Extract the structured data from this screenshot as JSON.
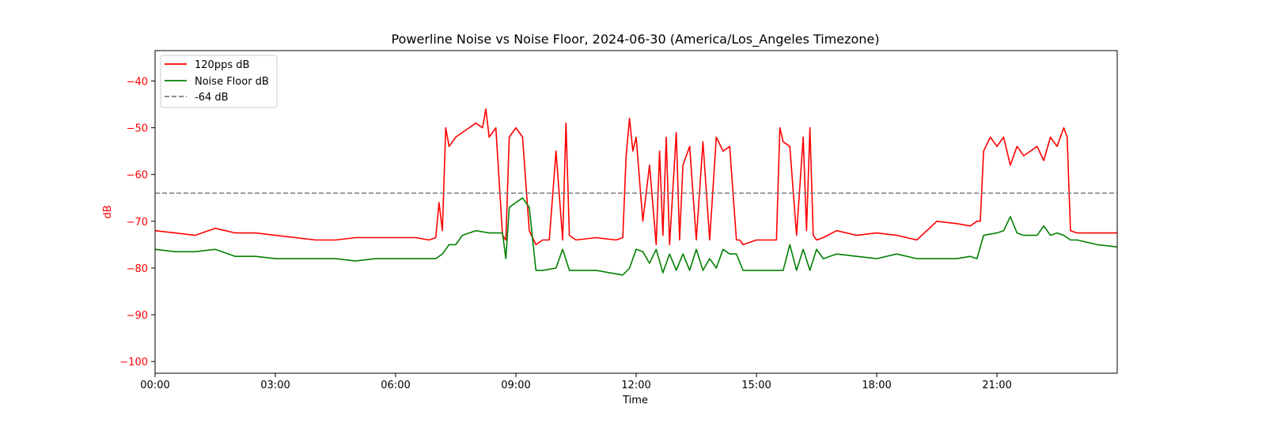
{
  "chart_data": {
    "type": "line",
    "title": "Powerline Noise vs Noise Floor, 2024-06-30 (America/Los_Angeles Timezone)",
    "xlabel": "Time",
    "ylabel": "dB",
    "xlim": [
      "00:00",
      "24:00"
    ],
    "ylim": [
      -102.5,
      -33.5
    ],
    "x_ticks": [
      "00:00",
      "03:00",
      "06:00",
      "09:00",
      "12:00",
      "15:00",
      "18:00",
      "21:00"
    ],
    "y_ticks": [
      -40,
      -50,
      -60,
      -70,
      -80,
      -90,
      -100
    ],
    "y_tick_labels": [
      "−40",
      "−50",
      "−60",
      "−70",
      "−80",
      "−90",
      "−100"
    ],
    "legend_position": "top-left",
    "grid": false,
    "colors": {
      "pps": "#ff0000",
      "floor": "#008000",
      "threshold": "#7f7f7f",
      "ylabel": "#ff0000",
      "yticks": "#ff0000"
    },
    "series": [
      {
        "name": "120pps dB",
        "style": "solid",
        "x": [
          "00:00",
          "00:30",
          "01:00",
          "01:30",
          "02:00",
          "02:30",
          "03:00",
          "03:30",
          "04:00",
          "04:30",
          "05:00",
          "05:30",
          "06:00",
          "06:30",
          "06:50",
          "07:00",
          "07:05",
          "07:10",
          "07:15",
          "07:20",
          "07:30",
          "07:40",
          "07:50",
          "08:00",
          "08:10",
          "08:15",
          "08:20",
          "08:30",
          "08:40",
          "08:45",
          "08:50",
          "09:00",
          "09:10",
          "09:20",
          "09:30",
          "09:40",
          "09:50",
          "10:00",
          "10:10",
          "10:15",
          "10:20",
          "10:30",
          "11:00",
          "11:30",
          "11:40",
          "11:45",
          "11:50",
          "11:55",
          "12:00",
          "12:10",
          "12:20",
          "12:30",
          "12:35",
          "12:40",
          "12:45",
          "12:50",
          "13:00",
          "13:05",
          "13:10",
          "13:20",
          "13:30",
          "13:40",
          "13:50",
          "14:00",
          "14:10",
          "14:20",
          "14:30",
          "14:35",
          "14:40",
          "15:00",
          "15:30",
          "15:35",
          "15:40",
          "15:50",
          "16:00",
          "16:10",
          "16:15",
          "16:20",
          "16:25",
          "16:30",
          "16:40",
          "17:00",
          "17:30",
          "18:00",
          "18:30",
          "19:00",
          "19:30",
          "20:00",
          "20:20",
          "20:30",
          "20:35",
          "20:40",
          "20:50",
          "21:00",
          "21:10",
          "21:20",
          "21:30",
          "21:40",
          "21:50",
          "22:00",
          "22:10",
          "22:20",
          "22:30",
          "22:40",
          "22:45",
          "22:50",
          "23:00",
          "23:30",
          "24:00"
        ],
        "values": [
          -72,
          -72.5,
          -73,
          -71.5,
          -72.5,
          -72.5,
          -73,
          -73.5,
          -74,
          -74,
          -73.5,
          -73.5,
          -73.5,
          -73.5,
          -74,
          -73.5,
          -66,
          -72,
          -50,
          -54,
          -52,
          -51,
          -50,
          -49,
          -50,
          -46,
          -52,
          -50,
          -73,
          -74,
          -52,
          -50,
          -52,
          -72,
          -75,
          -74,
          -74,
          -55,
          -74,
          -49,
          -73,
          -74,
          -73.5,
          -74,
          -73.5,
          -56,
          -48,
          -55,
          -52,
          -70,
          -58,
          -75,
          -55,
          -73,
          -52,
          -75,
          -51,
          -74,
          -58,
          -54,
          -74,
          -53,
          -74,
          -52,
          -55,
          -54,
          -74,
          -74,
          -75,
          -74,
          -74,
          -50,
          -53,
          -54,
          -73,
          -52,
          -72,
          -50,
          -73,
          -74,
          -73.5,
          -72,
          -73,
          -72.5,
          -73,
          -74,
          -70,
          -70.5,
          -71,
          -70,
          -70,
          -55,
          -52,
          -54,
          -52,
          -58,
          -54,
          -56,
          -55,
          -54,
          -57,
          -52,
          -54,
          -50,
          -52,
          -72,
          -72.5,
          -72.5,
          -72.5
        ]
      },
      {
        "name": "Noise Floor dB",
        "style": "solid",
        "x": [
          "00:00",
          "00:30",
          "01:00",
          "01:30",
          "02:00",
          "02:30",
          "03:00",
          "03:30",
          "04:00",
          "04:30",
          "05:00",
          "05:30",
          "06:00",
          "06:30",
          "07:00",
          "07:10",
          "07:20",
          "07:30",
          "07:40",
          "08:00",
          "08:20",
          "08:40",
          "08:45",
          "08:50",
          "09:00",
          "09:10",
          "09:20",
          "09:30",
          "09:40",
          "10:00",
          "10:10",
          "10:20",
          "10:30",
          "11:00",
          "11:20",
          "11:40",
          "11:50",
          "12:00",
          "12:10",
          "12:20",
          "12:30",
          "12:40",
          "12:50",
          "13:00",
          "13:10",
          "13:20",
          "13:30",
          "13:40",
          "13:50",
          "14:00",
          "14:10",
          "14:20",
          "14:30",
          "14:40",
          "15:00",
          "15:20",
          "15:40",
          "15:50",
          "16:00",
          "16:10",
          "16:20",
          "16:30",
          "16:40",
          "17:00",
          "17:30",
          "18:00",
          "18:30",
          "19:00",
          "19:30",
          "20:00",
          "20:20",
          "20:30",
          "20:40",
          "21:00",
          "21:10",
          "21:20",
          "21:30",
          "21:40",
          "22:00",
          "22:10",
          "22:20",
          "22:30",
          "22:40",
          "22:50",
          "23:00",
          "23:30",
          "24:00"
        ],
        "values": [
          -76,
          -76.5,
          -76.5,
          -76,
          -77.5,
          -77.5,
          -78,
          -78,
          -78,
          -78,
          -78.5,
          -78,
          -78,
          -78,
          -78,
          -77,
          -75,
          -75,
          -73,
          -72,
          -72.5,
          -72.5,
          -78,
          -67,
          -66,
          -65,
          -67,
          -80.5,
          -80.5,
          -80,
          -76,
          -80.5,
          -80.5,
          -80.5,
          -81,
          -81.5,
          -80,
          -76,
          -76.5,
          -79,
          -76,
          -81,
          -77,
          -80.5,
          -77,
          -80.5,
          -76,
          -80.5,
          -78,
          -80,
          -76,
          -77,
          -77,
          -80.5,
          -80.5,
          -80.5,
          -80.5,
          -75,
          -80.5,
          -76,
          -80.5,
          -76,
          -78,
          -77,
          -77.5,
          -78,
          -77,
          -78,
          -78,
          -78,
          -77.5,
          -78,
          -73,
          -72.5,
          -72,
          -69,
          -72.5,
          -73,
          -73,
          -71,
          -73,
          -72.5,
          -73,
          -74,
          -74,
          -75,
          -75.5
        ]
      },
      {
        "name": "-64 dB",
        "style": "dashed",
        "x": [
          "00:00",
          "24:00"
        ],
        "values": [
          -64,
          -64
        ]
      }
    ]
  }
}
